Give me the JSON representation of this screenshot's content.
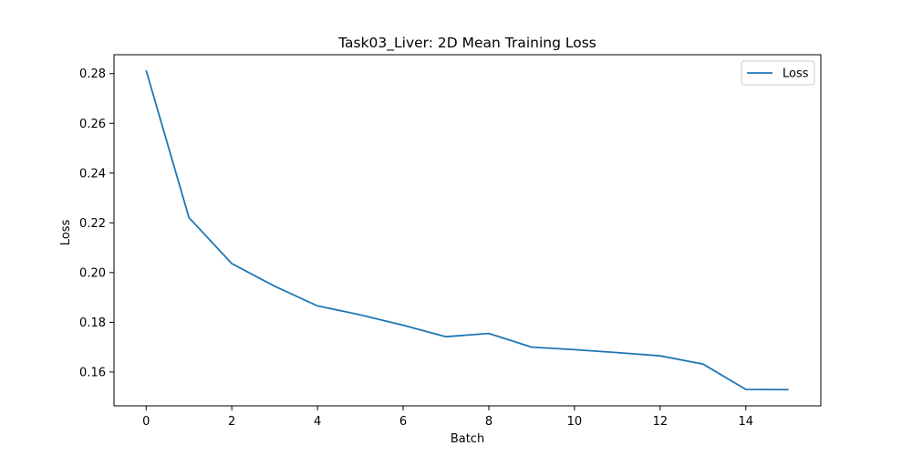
{
  "chart_data": {
    "type": "line",
    "title": "Task03_Liver: 2D Mean Training Loss",
    "xlabel": "Batch",
    "ylabel": "Loss",
    "xlim": [
      -0.75,
      15.75
    ],
    "ylim": [
      0.1464,
      0.2876
    ],
    "xticks": [
      0,
      2,
      4,
      6,
      8,
      10,
      12,
      14
    ],
    "xtick_labels": [
      "0",
      "2",
      "4",
      "6",
      "8",
      "10",
      "12",
      "14"
    ],
    "yticks": [
      0.16,
      0.18,
      0.2,
      0.22,
      0.24,
      0.26,
      0.28
    ],
    "ytick_labels": [
      "0.16",
      "0.18",
      "0.20",
      "0.22",
      "0.24",
      "0.26",
      "0.28"
    ],
    "grid": false,
    "legend_position": "top-right",
    "series": [
      {
        "name": "Loss",
        "color": "#1f77b4",
        "x": [
          0,
          1,
          2,
          3,
          4,
          5,
          6,
          7,
          8,
          9,
          10,
          11,
          12,
          13,
          14,
          15
        ],
        "values": [
          0.2813,
          0.2221,
          0.2036,
          0.1945,
          0.1866,
          0.183,
          0.1788,
          0.1742,
          0.1755,
          0.17,
          0.169,
          0.1678,
          0.1665,
          0.1632,
          0.153,
          0.1529
        ]
      }
    ]
  }
}
